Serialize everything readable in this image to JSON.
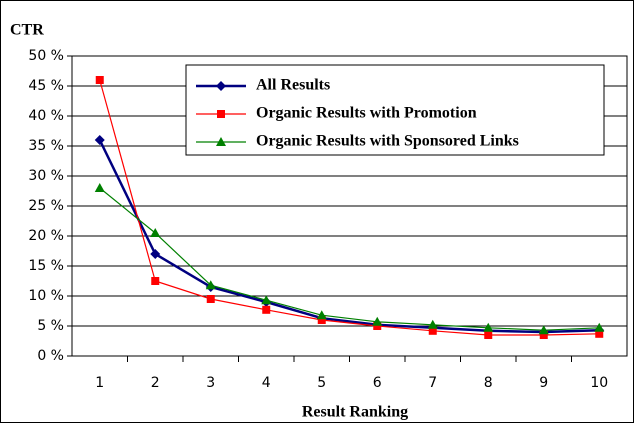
{
  "chart_data": {
    "type": "line",
    "title": "CTR",
    "x_label": "Result Ranking",
    "categories": [
      "1",
      "2",
      "3",
      "4",
      "5",
      "6",
      "7",
      "8",
      "9",
      "10"
    ],
    "series": [
      {
        "name": "All Results",
        "color": "#000080",
        "marker": "diamond",
        "values": [
          36,
          17,
          11.5,
          9,
          6.3,
          5.2,
          4.7,
          4.2,
          4,
          4.3
        ]
      },
      {
        "name": "Organic Results with Promotion",
        "color": "#ff0000",
        "marker": "square",
        "values": [
          46,
          12.5,
          9.5,
          7.7,
          6,
          5,
          4.2,
          3.5,
          3.5,
          3.7
        ]
      },
      {
        "name": "Organic Results with Sponsored Links",
        "color": "#008000",
        "marker": "triangle",
        "values": [
          28,
          20.5,
          11.8,
          9.3,
          6.8,
          5.7,
          5.2,
          4.7,
          4.3,
          4.7
        ]
      }
    ],
    "ylim": [
      0,
      50
    ],
    "yticks": [
      {
        "value": 0,
        "label": "0 %"
      },
      {
        "value": 5,
        "label": "5 %"
      },
      {
        "value": 10,
        "label": "10 %"
      },
      {
        "value": 15,
        "label": "15 %"
      },
      {
        "value": 20,
        "label": "20 %"
      },
      {
        "value": 25,
        "label": "25 %"
      },
      {
        "value": 30,
        "label": "30 %"
      },
      {
        "value": 35,
        "label": "35 %"
      },
      {
        "value": 40,
        "label": "40 %"
      },
      {
        "value": 45,
        "label": "45 %"
      },
      {
        "value": 50,
        "label": "50 %"
      }
    ],
    "grid": true,
    "legend": "top-right"
  }
}
